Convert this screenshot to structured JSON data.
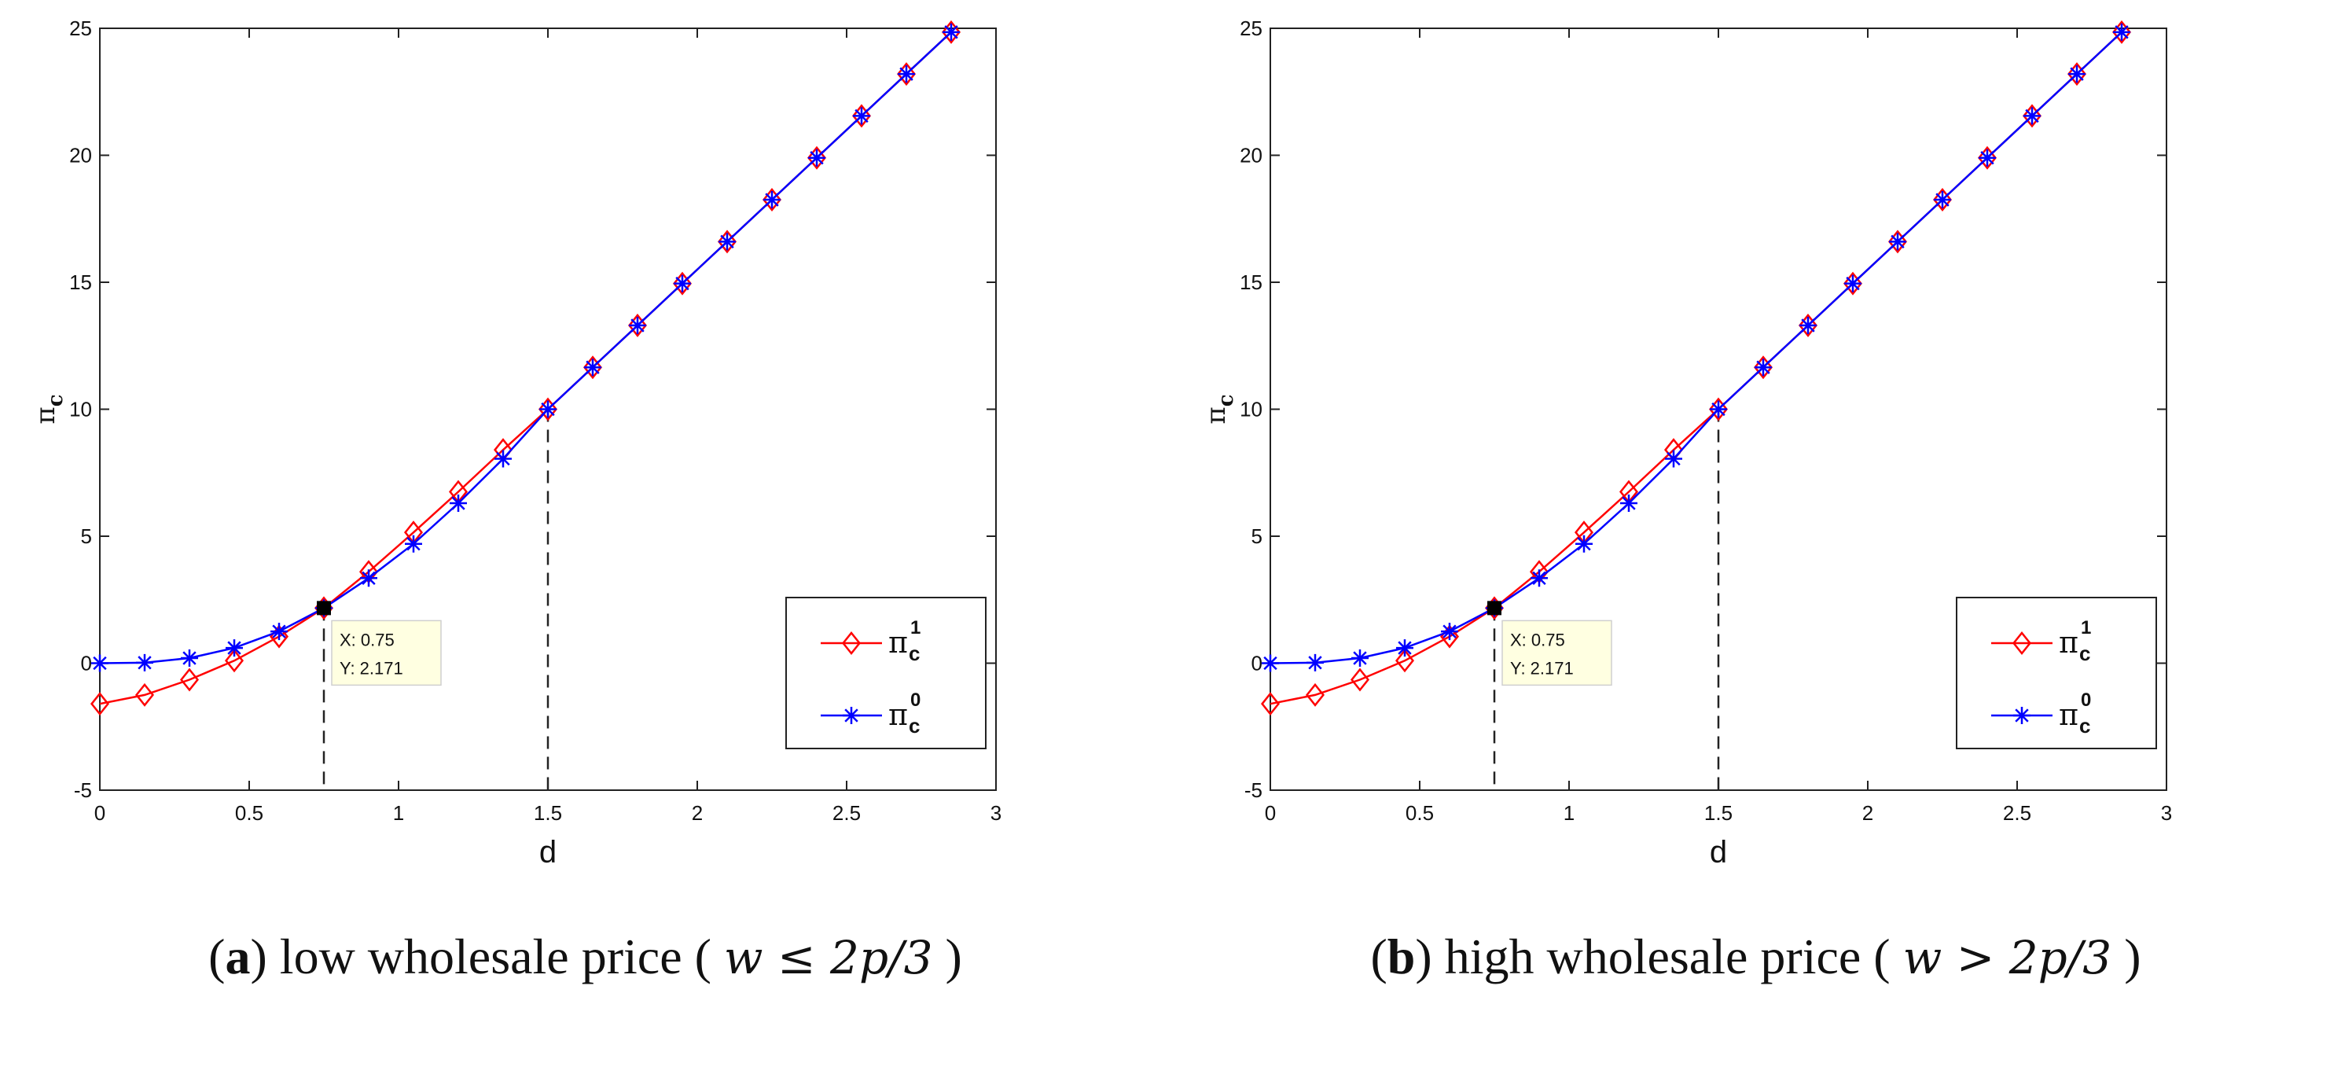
{
  "chart_data": [
    {
      "id": "a",
      "type": "line",
      "caption_letter": "a",
      "caption_text": "low wholesale price",
      "caption_math": "w ≤ 2p/3",
      "xlabel": "d",
      "ylabel_symbol": "π",
      "ylabel_sub": "c",
      "xlim": [
        0,
        3
      ],
      "ylim": [
        -5,
        25
      ],
      "xticks": [
        0,
        0.5,
        1,
        1.5,
        2,
        2.5,
        3
      ],
      "xtick_labels": [
        "0",
        "0.5",
        "1",
        "1.5",
        "2",
        "2.5",
        "3"
      ],
      "yticks": [
        -5,
        0,
        5,
        10,
        15,
        20,
        25
      ],
      "ytick_labels": [
        "-5",
        "0",
        "5",
        "10",
        "15",
        "20",
        "25"
      ],
      "grid": false,
      "legend_position": "lower-right",
      "series": [
        {
          "name": "π_c^1",
          "symbol": "π",
          "sub": "c",
          "sup": "1",
          "color": "#ff0000",
          "marker": "diamond",
          "x": [
            0,
            0.15,
            0.3,
            0.45,
            0.6,
            0.75,
            0.9,
            1.05,
            1.2,
            1.35,
            1.5,
            1.65,
            1.8,
            1.95,
            2.1,
            2.25,
            2.4,
            2.55,
            2.7,
            2.85
          ],
          "y": [
            -1.6,
            -1.25,
            -0.65,
            0.1,
            1.05,
            2.171,
            3.6,
            5.15,
            6.75,
            8.4,
            10.0,
            11.65,
            13.3,
            14.95,
            16.6,
            18.25,
            19.9,
            21.55,
            23.2,
            24.85
          ]
        },
        {
          "name": "π_c^0",
          "symbol": "π",
          "sub": "c",
          "sup": "0",
          "color": "#0000ff",
          "marker": "asterisk",
          "x": [
            0,
            0.15,
            0.3,
            0.45,
            0.6,
            0.75,
            0.9,
            1.05,
            1.2,
            1.35,
            1.5,
            1.65,
            1.8,
            1.95,
            2.1,
            2.25,
            2.4,
            2.55,
            2.7,
            2.85
          ],
          "y": [
            0,
            0.02,
            0.2,
            0.6,
            1.25,
            2.171,
            3.35,
            4.7,
            6.3,
            8.05,
            10.0,
            11.65,
            13.3,
            14.95,
            16.6,
            18.25,
            19.9,
            21.55,
            23.2,
            24.85
          ]
        }
      ],
      "vlines": [
        {
          "x": 0.75,
          "y": 2.171
        },
        {
          "x": 1.5,
          "y": 10.0
        }
      ],
      "datatip": {
        "x": 0.75,
        "y": 2.171,
        "line1": "X: 0.75",
        "line2": "Y: 2.171"
      }
    },
    {
      "id": "b",
      "type": "line",
      "caption_letter": "b",
      "caption_text": "high wholesale price",
      "caption_math": "w > 2p/3",
      "xlabel": "d",
      "ylabel_symbol": "π",
      "ylabel_sub": "c",
      "xlim": [
        0,
        3
      ],
      "ylim": [
        -5,
        25
      ],
      "xticks": [
        0,
        0.5,
        1,
        1.5,
        2,
        2.5,
        3
      ],
      "xtick_labels": [
        "0",
        "0.5",
        "1",
        "1.5",
        "2",
        "2.5",
        "3"
      ],
      "yticks": [
        -5,
        0,
        5,
        10,
        15,
        20,
        25
      ],
      "ytick_labels": [
        "-5",
        "0",
        "5",
        "10",
        "15",
        "20",
        "25"
      ],
      "grid": false,
      "legend_position": "lower-right",
      "series": [
        {
          "name": "π_c^1",
          "symbol": "π",
          "sub": "c",
          "sup": "1",
          "color": "#ff0000",
          "marker": "diamond",
          "x": [
            0,
            0.15,
            0.3,
            0.45,
            0.6,
            0.75,
            0.9,
            1.05,
            1.2,
            1.35,
            1.5,
            1.65,
            1.8,
            1.95,
            2.1,
            2.25,
            2.4,
            2.55,
            2.7,
            2.85
          ],
          "y": [
            -1.6,
            -1.25,
            -0.65,
            0.1,
            1.05,
            2.171,
            3.6,
            5.15,
            6.75,
            8.4,
            10.0,
            11.65,
            13.3,
            14.95,
            16.6,
            18.25,
            19.9,
            21.55,
            23.2,
            24.85
          ]
        },
        {
          "name": "π_c^0",
          "symbol": "π",
          "sub": "c",
          "sup": "0",
          "color": "#0000ff",
          "marker": "asterisk",
          "x": [
            0,
            0.15,
            0.3,
            0.45,
            0.6,
            0.75,
            0.9,
            1.05,
            1.2,
            1.35,
            1.5,
            1.65,
            1.8,
            1.95,
            2.1,
            2.25,
            2.4,
            2.55,
            2.7,
            2.85
          ],
          "y": [
            0,
            0.02,
            0.2,
            0.6,
            1.25,
            2.171,
            3.35,
            4.7,
            6.3,
            8.05,
            10.0,
            11.65,
            13.3,
            14.95,
            16.6,
            18.25,
            19.9,
            21.55,
            23.2,
            24.85
          ]
        }
      ],
      "vlines": [
        {
          "x": 0.75,
          "y": 2.171
        },
        {
          "x": 1.5,
          "y": 10.0
        }
      ],
      "datatip": {
        "x": 0.75,
        "y": 2.171,
        "line1": "X: 0.75",
        "line2": "Y: 2.171"
      }
    }
  ]
}
